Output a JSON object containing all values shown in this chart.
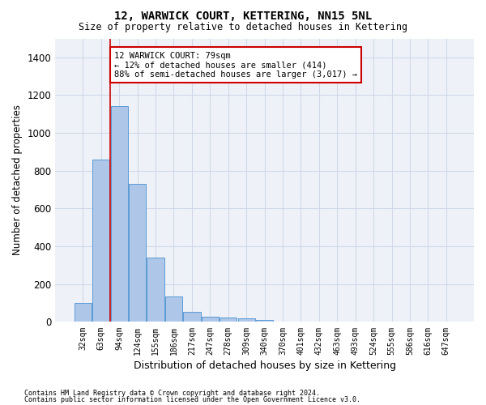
{
  "title1": "12, WARWICK COURT, KETTERING, NN15 5NL",
  "title2": "Size of property relative to detached houses in Kettering",
  "xlabel": "Distribution of detached houses by size in Kettering",
  "ylabel": "Number of detached properties",
  "categories": [
    "32sqm",
    "63sqm",
    "94sqm",
    "124sqm",
    "155sqm",
    "186sqm",
    "217sqm",
    "247sqm",
    "278sqm",
    "309sqm",
    "340sqm",
    "370sqm",
    "401sqm",
    "432sqm",
    "463sqm",
    "493sqm",
    "524sqm",
    "555sqm",
    "586sqm",
    "616sqm",
    "647sqm"
  ],
  "values": [
    100,
    860,
    1140,
    730,
    340,
    135,
    55,
    28,
    22,
    17,
    10,
    0,
    0,
    0,
    0,
    0,
    0,
    0,
    0,
    0,
    0
  ],
  "bar_color": "#aec6e8",
  "bar_edge_color": "#5b9bd5",
  "vline_x": 1.48,
  "vline_color": "#cc0000",
  "annotation_text": "12 WARWICK COURT: 79sqm\n← 12% of detached houses are smaller (414)\n88% of semi-detached houses are larger (3,017) →",
  "annotation_box_color": "#ffffff",
  "annotation_box_edge": "#cc0000",
  "ylim": [
    0,
    1500
  ],
  "yticks": [
    0,
    200,
    400,
    600,
    800,
    1000,
    1200,
    1400
  ],
  "grid_color": "#d0d8e8",
  "bg_color": "#eef2f8",
  "footer1": "Contains HM Land Registry data © Crown copyright and database right 2024.",
  "footer2": "Contains public sector information licensed under the Open Government Licence v3.0."
}
